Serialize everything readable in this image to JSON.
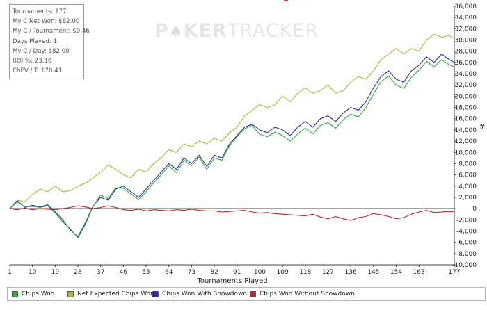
{
  "stats": {
    "lines": [
      "Tournaments: 177",
      "My C Net Won: $82.00",
      "My C / Tournament: $0.46",
      "Days Played: 1",
      "My C / Day: $82.00",
      "ROI %: 23.16",
      "ChEV / T: 170.41"
    ]
  },
  "watermark": {
    "left": "P",
    "o_char": "♠",
    "mid": "KER",
    "right": "TRACKER"
  },
  "legend": [
    {
      "label": "Chips Won",
      "color": "#2eaa3c"
    },
    {
      "label": "Net Expected Chips Won",
      "color": "#b5b437"
    },
    {
      "label": "Chips Won With Showdown",
      "color": "#2c2ca8"
    },
    {
      "label": "Chips Won Without Showdown",
      "color": "#b52626"
    }
  ],
  "chart_data": {
    "type": "line",
    "xlabel": "Tournaments Played",
    "ylabel": "#",
    "xlim": [
      1,
      177
    ],
    "ylim": [
      -10000,
      36000
    ],
    "x_ticks": [
      1,
      10,
      19,
      28,
      37,
      46,
      55,
      64,
      73,
      82,
      91,
      100,
      109,
      118,
      127,
      136,
      145,
      154,
      163,
      177
    ],
    "y_ticks": [
      -10000,
      -8000,
      -6000,
      -4000,
      -2000,
      0,
      2000,
      4000,
      6000,
      8000,
      10000,
      12000,
      14000,
      16000,
      18000,
      20000,
      22000,
      24000,
      26000,
      28000,
      30000,
      32000,
      34000,
      36000
    ],
    "grid": false,
    "series": [
      {
        "name": "Net Expected Chips Won",
        "color": "#b5b437",
        "x": [
          1,
          4,
          7,
          10,
          13,
          16,
          19,
          22,
          25,
          28,
          31,
          34,
          37,
          40,
          43,
          46,
          49,
          52,
          55,
          58,
          61,
          64,
          67,
          70,
          73,
          76,
          79,
          82,
          85,
          88,
          91,
          94,
          97,
          100,
          103,
          106,
          109,
          112,
          115,
          118,
          121,
          124,
          127,
          130,
          133,
          136,
          139,
          142,
          145,
          148,
          151,
          154,
          157,
          160,
          163,
          166,
          169,
          172,
          175,
          177
        ],
        "values": [
          0,
          1500,
          1200,
          2500,
          3500,
          3000,
          4000,
          3000,
          3200,
          4000,
          4500,
          5500,
          6500,
          7800,
          7000,
          6000,
          5500,
          7000,
          6500,
          8000,
          9000,
          10500,
          10000,
          11500,
          11000,
          12000,
          11500,
          12500,
          12000,
          13500,
          14500,
          16500,
          17500,
          18500,
          18000,
          18500,
          20000,
          19000,
          20500,
          21500,
          20500,
          21000,
          22000,
          20500,
          21000,
          22500,
          23500,
          23000,
          24500,
          26500,
          27500,
          28500,
          27500,
          28500,
          28000,
          30000,
          31000,
          30500,
          30800,
          30200
        ]
      },
      {
        "name": "Chips Won With Showdown",
        "color": "#2c2ca8",
        "x": [
          1,
          4,
          7,
          10,
          13,
          16,
          19,
          22,
          25,
          28,
          31,
          34,
          37,
          40,
          43,
          46,
          49,
          52,
          55,
          58,
          61,
          64,
          67,
          70,
          73,
          76,
          79,
          82,
          85,
          88,
          91,
          94,
          97,
          100,
          103,
          106,
          109,
          112,
          115,
          118,
          121,
          124,
          127,
          130,
          133,
          136,
          139,
          142,
          145,
          148,
          151,
          154,
          157,
          160,
          163,
          166,
          169,
          172,
          175,
          177
        ],
        "values": [
          0,
          1400,
          200,
          600,
          300,
          700,
          -600,
          -2000,
          -3800,
          -5000,
          -2500,
          500,
          2000,
          1500,
          3500,
          4000,
          3000,
          2000,
          3500,
          5000,
          6500,
          8000,
          7000,
          9000,
          8000,
          9500,
          7500,
          9500,
          9000,
          11500,
          13000,
          14500,
          15000,
          14000,
          13500,
          14500,
          14000,
          13000,
          14500,
          15500,
          14500,
          16000,
          16500,
          15500,
          17000,
          18000,
          17500,
          19000,
          21500,
          23500,
          24500,
          23000,
          22500,
          24500,
          25500,
          27000,
          26000,
          27500,
          26500,
          26000
        ]
      },
      {
        "name": "Chips Won",
        "color": "#2eaa3c",
        "x": [
          1,
          4,
          7,
          10,
          13,
          16,
          19,
          22,
          25,
          28,
          31,
          34,
          37,
          40,
          43,
          46,
          49,
          52,
          55,
          58,
          61,
          64,
          67,
          70,
          73,
          76,
          79,
          82,
          85,
          88,
          91,
          94,
          97,
          100,
          103,
          106,
          109,
          112,
          115,
          118,
          121,
          124,
          127,
          130,
          133,
          136,
          139,
          142,
          145,
          148,
          151,
          154,
          157,
          160,
          163,
          166,
          169,
          172,
          175,
          177
        ],
        "values": [
          0,
          1200,
          300,
          400,
          200,
          500,
          -800,
          -2400,
          -3600,
          -5200,
          -2800,
          400,
          2400,
          1800,
          3700,
          3600,
          2600,
          1600,
          3000,
          4600,
          6000,
          7600,
          6400,
          8600,
          7600,
          9200,
          7000,
          9000,
          8600,
          11200,
          12800,
          14200,
          14800,
          13200,
          12800,
          13600,
          13000,
          12000,
          13300,
          14300,
          13300,
          14800,
          15300,
          14300,
          15800,
          16800,
          16300,
          18000,
          20400,
          22600,
          23600,
          22000,
          21400,
          23400,
          24600,
          26200,
          25200,
          26500,
          25600,
          25200
        ]
      },
      {
        "name": "Chips Won Without Showdown",
        "color": "#b52626",
        "x": [
          1,
          4,
          7,
          10,
          13,
          16,
          19,
          22,
          25,
          28,
          31,
          34,
          37,
          40,
          43,
          46,
          49,
          52,
          55,
          58,
          61,
          64,
          67,
          70,
          73,
          76,
          79,
          82,
          85,
          88,
          91,
          94,
          97,
          100,
          103,
          106,
          109,
          112,
          115,
          118,
          121,
          124,
          127,
          130,
          133,
          136,
          139,
          142,
          145,
          148,
          151,
          154,
          157,
          160,
          163,
          166,
          169,
          172,
          175,
          177
        ],
        "values": [
          0,
          -200,
          100,
          -200,
          0,
          -100,
          -200,
          0,
          200,
          500,
          300,
          0,
          200,
          500,
          200,
          -200,
          -300,
          -100,
          -400,
          -200,
          -300,
          -400,
          -200,
          -300,
          -100,
          -300,
          -400,
          -400,
          -600,
          -500,
          -400,
          -300,
          -600,
          -800,
          -700,
          -900,
          -1000,
          -1100,
          -1200,
          -1300,
          -1000,
          -1500,
          -1800,
          -1400,
          -1800,
          -2100,
          -1600,
          -1400,
          -900,
          -1100,
          -1400,
          -1800,
          -1600,
          -1000,
          -600,
          -300,
          -700,
          -600,
          -500,
          -600
        ]
      }
    ]
  }
}
